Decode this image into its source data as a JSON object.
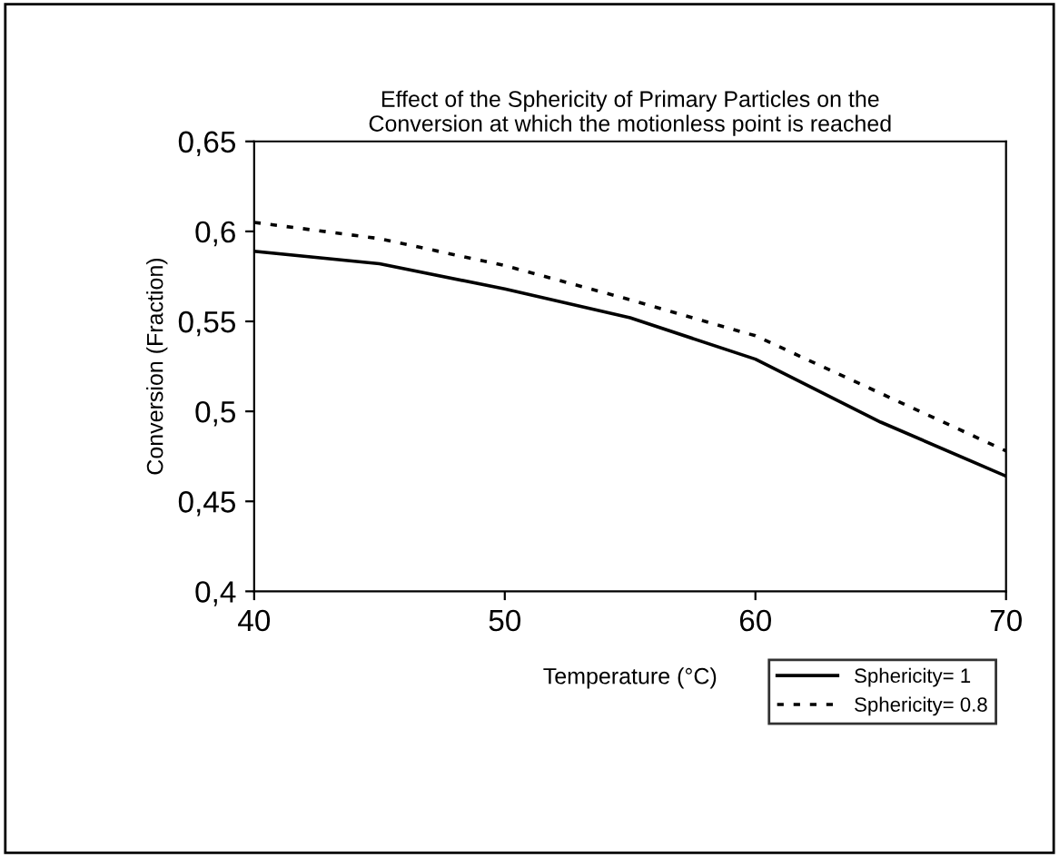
{
  "chart_data": {
    "type": "line",
    "title": "Effect of the Sphericity of Primary Particles on the\nConversion at which the motionless point is reached",
    "xlabel": "Temperature (°C)",
    "ylabel": "Conversion (Fraction)",
    "x": [
      40,
      45,
      50,
      55,
      60,
      65,
      70
    ],
    "series": [
      {
        "name": "Sphericity= 1",
        "color": "#000000",
        "line_style": "solid",
        "values": [
          0.589,
          0.582,
          0.568,
          0.552,
          0.529,
          0.494,
          0.464
        ]
      },
      {
        "name": "Sphericity= 0.8",
        "color": "#000000",
        "line_style": "dotted",
        "values": [
          0.605,
          0.596,
          0.581,
          0.562,
          0.542,
          0.51,
          0.478
        ]
      }
    ],
    "xlim": [
      40,
      70
    ],
    "xticks": [
      40,
      50,
      60,
      70
    ],
    "ylim": [
      0.4,
      0.65
    ],
    "yticks": [
      {
        "value": 0.4,
        "label": "0,4"
      },
      {
        "value": 0.45,
        "label": "0,45"
      },
      {
        "value": 0.5,
        "label": "0,5"
      },
      {
        "value": 0.55,
        "label": "0,55"
      },
      {
        "value": 0.6,
        "label": "0,6"
      },
      {
        "value": 0.65,
        "label": "0,65"
      }
    ],
    "grid": false,
    "legend": "bottom right",
    "marker": "none"
  }
}
